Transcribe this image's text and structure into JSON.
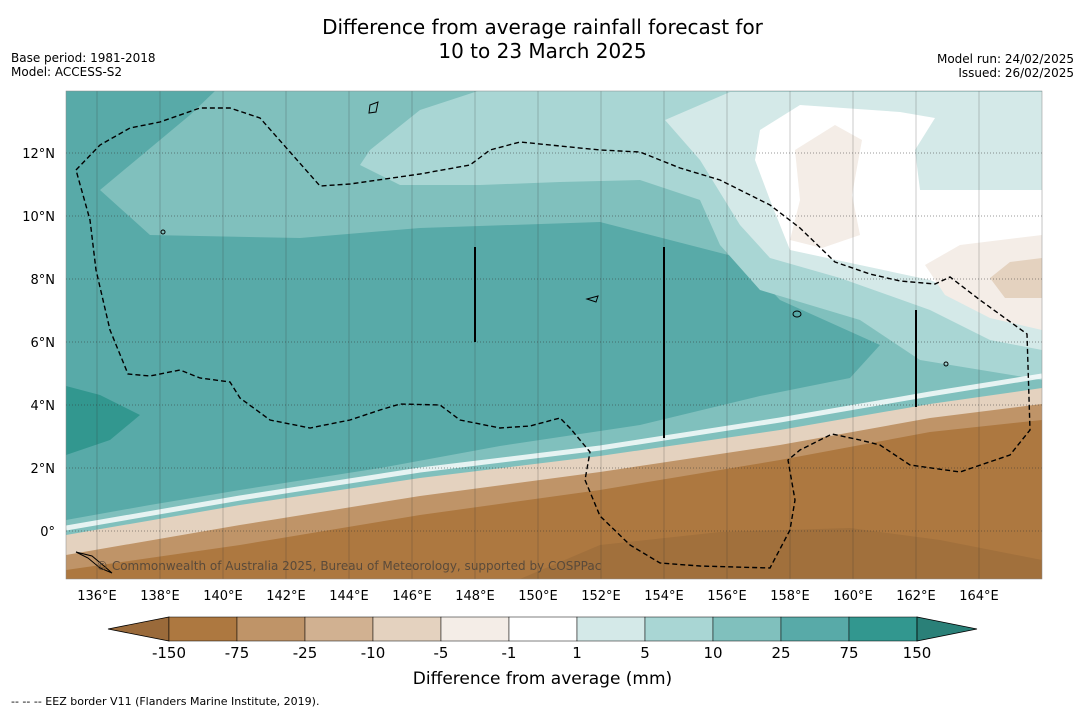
{
  "title_line1": "Difference from average rainfall forecast for",
  "title_line2": "10 to 23 March 2025",
  "meta_left": [
    "Base period: 1981-2018",
    "Model: ACCESS-S2"
  ],
  "meta_right": [
    "Model run: 24/02/2025",
    "Issued: 26/02/2025"
  ],
  "lon_labels": [
    "136°E",
    "138°E",
    "140°E",
    "142°E",
    "144°E",
    "146°E",
    "148°E",
    "150°E",
    "152°E",
    "154°E",
    "156°E",
    "158°E",
    "160°E",
    "162°E",
    "164°E"
  ],
  "lat_labels": [
    "12°N",
    "10°N",
    "8°N",
    "6°N",
    "4°N",
    "2°N",
    "0°"
  ],
  "copyright": "© Commonwealth of Australia 2025, Bureau of Meteorology, supported by COSPPac",
  "colorbar": {
    "ticks": [
      "-150",
      "-75",
      "-25",
      "-10",
      "-5",
      "-1",
      "1",
      "5",
      "10",
      "25",
      "75",
      "150"
    ],
    "colors": [
      "#9a6a3a",
      "#ad7840",
      "#bf9468",
      "#d1b191",
      "#e4d2bf",
      "#f4ede7",
      "#ffffff",
      "#d4e9e8",
      "#a9d6d4",
      "#80c0bd",
      "#58aaa8",
      "#32978f",
      "#2a8078"
    ],
    "title": "Difference from average (mm)"
  },
  "legend_note": "--  --  -- EEZ border V11 (Flanders Marine Institute, 2019)."
}
